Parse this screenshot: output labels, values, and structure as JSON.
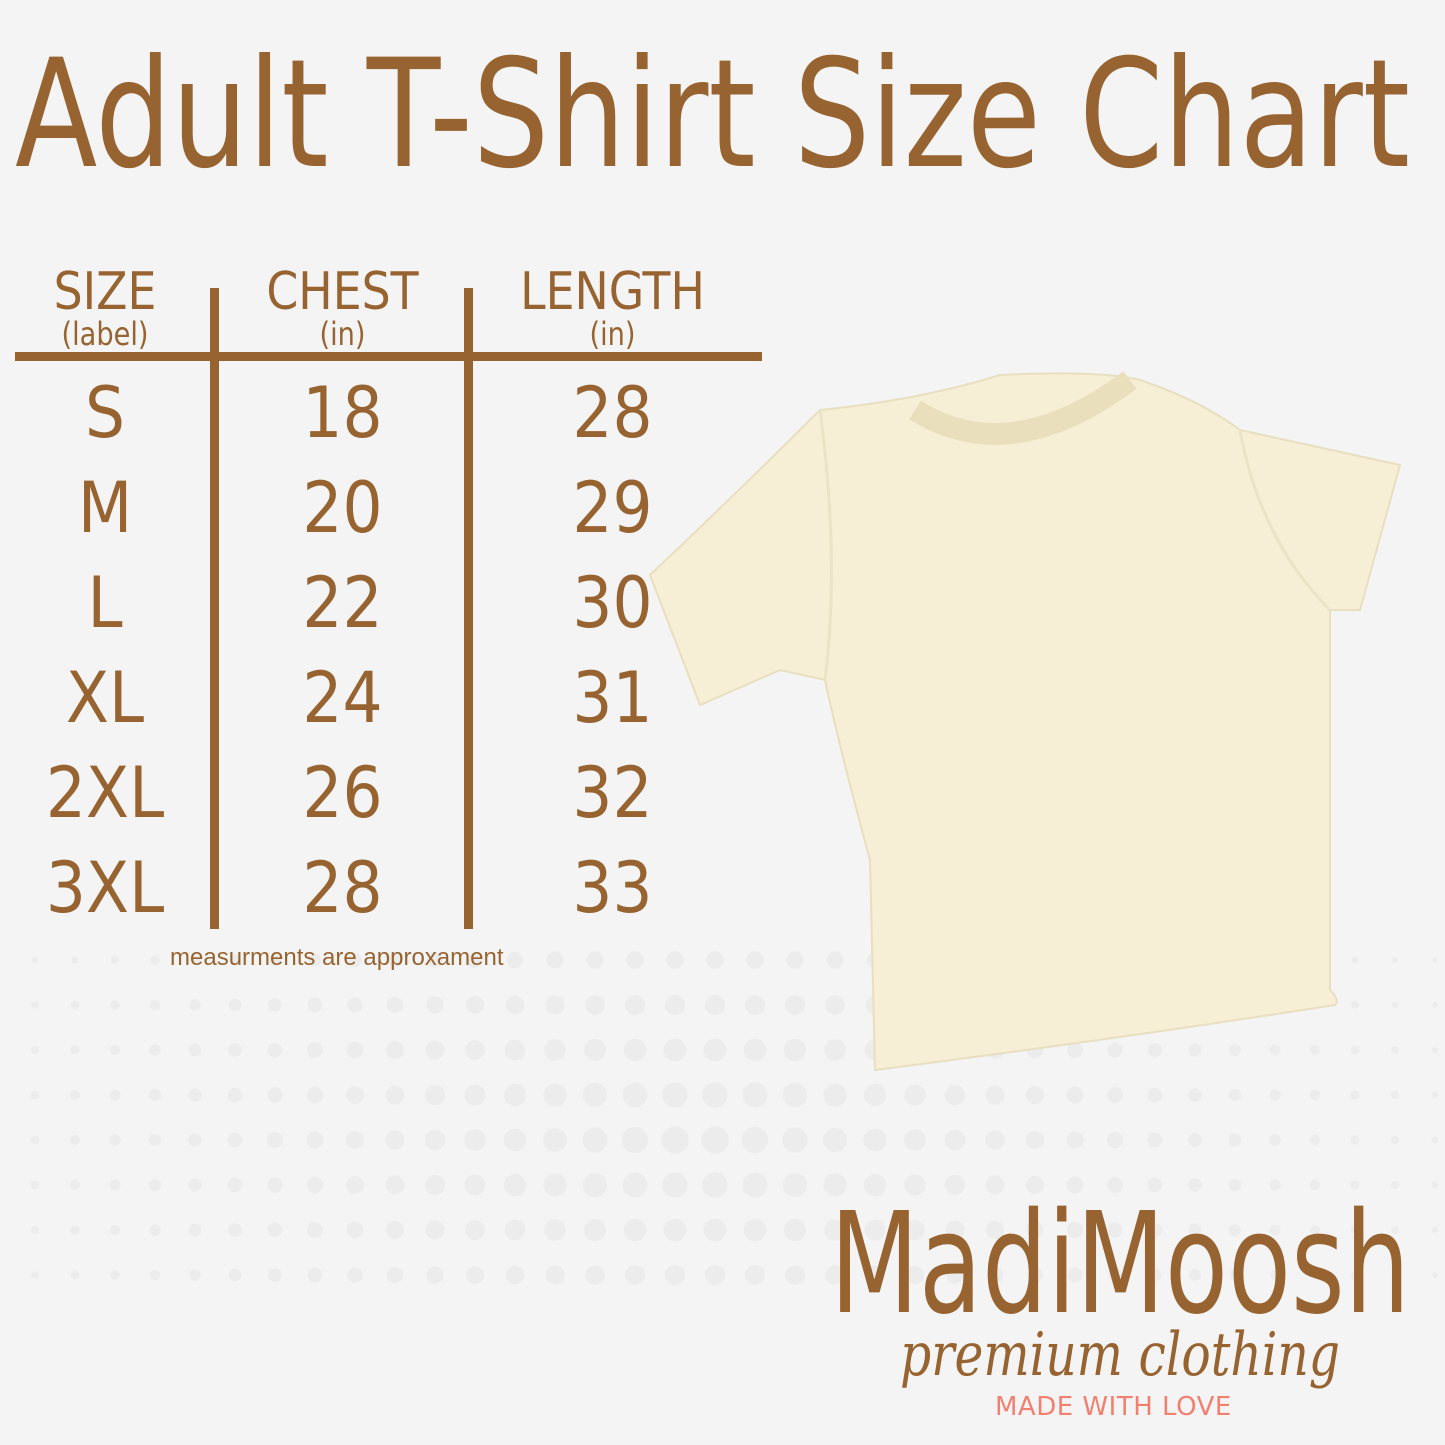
{
  "title": "Adult T-Shirt Size Chart",
  "table": {
    "headers": [
      {
        "label": "SIZE",
        "unit": "(label)"
      },
      {
        "label": "CHEST",
        "unit": "(in)"
      },
      {
        "label": "LENGTH",
        "unit": "(in)"
      }
    ],
    "rows": [
      [
        "S",
        "18",
        "28"
      ],
      [
        "M",
        "20",
        "29"
      ],
      [
        "L",
        "22",
        "30"
      ],
      [
        "XL",
        "24",
        "31"
      ],
      [
        "2XL",
        "26",
        "32"
      ],
      [
        "3XL",
        "28",
        "33"
      ]
    ],
    "note": "measurments are approxament"
  },
  "brand": {
    "name": "MadiMoosh",
    "tagline": "premium clothing",
    "slogan": "MADE WITH LOVE"
  },
  "colors": {
    "brown": "#976431",
    "pink": "#f08070",
    "background": "#f4f4f4",
    "shirt": "#f6efd6"
  }
}
